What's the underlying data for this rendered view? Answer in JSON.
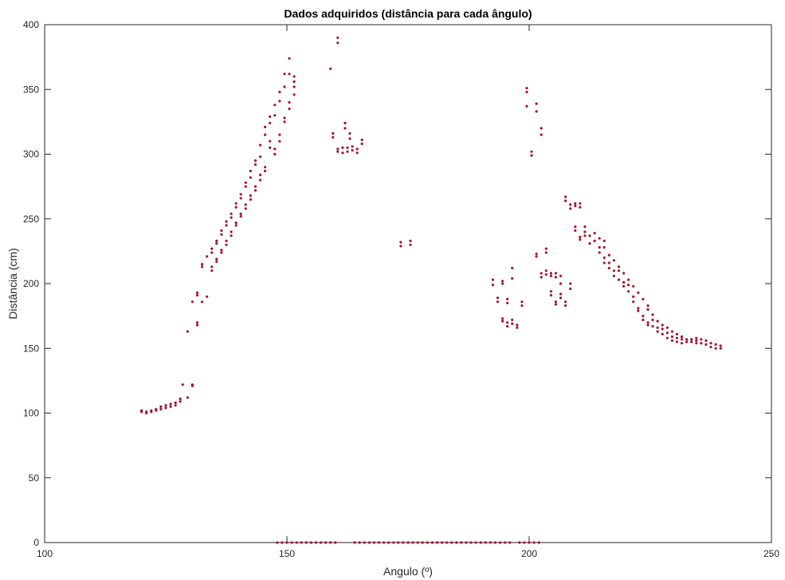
{
  "chart_data": {
    "type": "scatter",
    "title": "Dados adquiridos (distância para cada ângulo)",
    "xlabel": "Angulo (º)",
    "ylabel": "Distância (cm)",
    "xlim": [
      100,
      250
    ],
    "ylim": [
      0,
      400
    ],
    "xticks": [
      "100",
      "150",
      "200",
      "250"
    ],
    "yticks": [
      "0",
      "50",
      "100",
      "150",
      "200",
      "250",
      "300",
      "350",
      "400"
    ],
    "grid": false,
    "marker_color": "#A2142F",
    "points": [
      [
        120,
        101
      ],
      [
        120,
        102
      ],
      [
        121,
        100
      ],
      [
        121,
        101
      ],
      [
        122,
        101
      ],
      [
        122,
        102
      ],
      [
        123,
        102
      ],
      [
        123,
        103
      ],
      [
        124,
        103
      ],
      [
        124,
        105
      ],
      [
        125,
        104
      ],
      [
        125,
        106
      ],
      [
        126,
        105
      ],
      [
        126,
        107
      ],
      [
        127,
        106
      ],
      [
        127,
        108
      ],
      [
        128,
        109
      ],
      [
        128,
        111
      ],
      [
        128.5,
        122
      ],
      [
        129.5,
        112
      ],
      [
        129.5,
        163
      ],
      [
        130.5,
        121
      ],
      [
        130.5,
        122
      ],
      [
        130.5,
        186
      ],
      [
        131.5,
        168
      ],
      [
        131.5,
        170
      ],
      [
        131.5,
        191
      ],
      [
        131.5,
        193
      ],
      [
        132.5,
        186
      ],
      [
        132.5,
        213
      ],
      [
        132.5,
        215
      ],
      [
        133.5,
        190
      ],
      [
        133.5,
        221
      ],
      [
        134.5,
        210
      ],
      [
        134.5,
        213
      ],
      [
        134.5,
        224
      ],
      [
        134.5,
        227
      ],
      [
        135.5,
        217
      ],
      [
        135.5,
        219
      ],
      [
        135.5,
        231
      ],
      [
        135.5,
        233
      ],
      [
        136.5,
        224
      ],
      [
        136.5,
        226
      ],
      [
        136.5,
        238
      ],
      [
        136.5,
        241
      ],
      [
        137.5,
        230
      ],
      [
        137.5,
        233
      ],
      [
        137.5,
        245
      ],
      [
        137.5,
        248
      ],
      [
        138.5,
        237
      ],
      [
        138.5,
        240
      ],
      [
        138.5,
        251
      ],
      [
        138.5,
        254
      ],
      [
        139.5,
        245
      ],
      [
        139.5,
        247
      ],
      [
        139.5,
        259
      ],
      [
        139.5,
        262
      ],
      [
        140.5,
        252
      ],
      [
        140.5,
        254
      ],
      [
        140.5,
        266
      ],
      [
        140.5,
        269
      ],
      [
        141.5,
        258
      ],
      [
        141.5,
        261
      ],
      [
        141.5,
        275
      ],
      [
        141.5,
        278
      ],
      [
        142.5,
        265
      ],
      [
        142.5,
        268
      ],
      [
        142.5,
        282
      ],
      [
        142.5,
        287
      ],
      [
        143.5,
        272
      ],
      [
        143.5,
        275
      ],
      [
        143.5,
        292
      ],
      [
        143.5,
        295
      ],
      [
        144.5,
        280
      ],
      [
        144.5,
        284
      ],
      [
        144.5,
        298
      ],
      [
        144.5,
        307
      ],
      [
        145.5,
        287
      ],
      [
        145.5,
        290
      ],
      [
        145.5,
        315
      ],
      [
        145.5,
        321
      ],
      [
        146.5,
        305
      ],
      [
        146.5,
        310
      ],
      [
        146.5,
        324
      ],
      [
        146.5,
        329
      ],
      [
        147.5,
        300
      ],
      [
        147.5,
        304
      ],
      [
        147.5,
        330
      ],
      [
        147.5,
        338
      ],
      [
        148.5,
        310
      ],
      [
        148.5,
        315
      ],
      [
        148.5,
        341
      ],
      [
        148.5,
        348
      ],
      [
        149.5,
        325
      ],
      [
        149.5,
        328
      ],
      [
        149.5,
        352
      ],
      [
        149.5,
        362
      ],
      [
        150.5,
        335
      ],
      [
        150.5,
        340
      ],
      [
        150.5,
        362
      ],
      [
        150.5,
        374
      ],
      [
        151.5,
        346
      ],
      [
        151.5,
        352
      ],
      [
        151.5,
        356
      ],
      [
        151.5,
        360
      ],
      [
        159,
        366
      ],
      [
        160.5,
        386
      ],
      [
        160.5,
        390
      ],
      [
        159.5,
        313
      ],
      [
        159.5,
        316
      ],
      [
        160.5,
        302
      ],
      [
        160.5,
        304
      ],
      [
        161.5,
        301
      ],
      [
        161.5,
        305
      ],
      [
        162,
        320
      ],
      [
        162,
        324
      ],
      [
        162.5,
        302
      ],
      [
        162.5,
        305
      ],
      [
        163,
        312
      ],
      [
        163,
        316
      ],
      [
        163.5,
        303
      ],
      [
        163.5,
        306
      ],
      [
        164.5,
        301
      ],
      [
        164.5,
        304
      ],
      [
        165.5,
        308
      ],
      [
        165.5,
        311
      ],
      [
        173.5,
        229
      ],
      [
        173.5,
        232
      ],
      [
        175.5,
        230
      ],
      [
        175.5,
        233
      ],
      [
        192.5,
        199
      ],
      [
        192.5,
        203
      ],
      [
        193.5,
        186
      ],
      [
        193.5,
        189
      ],
      [
        194.5,
        171
      ],
      [
        194.5,
        173
      ],
      [
        194.5,
        200
      ],
      [
        194.5,
        202
      ],
      [
        195.5,
        167
      ],
      [
        195.5,
        170
      ],
      [
        195.5,
        185
      ],
      [
        195.5,
        188
      ],
      [
        196.5,
        169
      ],
      [
        196.5,
        172
      ],
      [
        196.5,
        204
      ],
      [
        196.5,
        212
      ],
      [
        197.5,
        166
      ],
      [
        197.5,
        168
      ],
      [
        198.5,
        183
      ],
      [
        198.5,
        186
      ],
      [
        199.5,
        337
      ],
      [
        199.5,
        348
      ],
      [
        199.5,
        351
      ],
      [
        200.5,
        299
      ],
      [
        200.5,
        302
      ],
      [
        201.5,
        221
      ],
      [
        201.5,
        223
      ],
      [
        201.5,
        333
      ],
      [
        201.5,
        339
      ],
      [
        202.5,
        205
      ],
      [
        202.5,
        208
      ],
      [
        202.5,
        315
      ],
      [
        202.5,
        320
      ],
      [
        203.5,
        207
      ],
      [
        203.5,
        210
      ],
      [
        203.5,
        224
      ],
      [
        203.5,
        227
      ],
      [
        204.5,
        191
      ],
      [
        204.5,
        194
      ],
      [
        204.5,
        206
      ],
      [
        204.5,
        208
      ],
      [
        205.5,
        184
      ],
      [
        205.5,
        186
      ],
      [
        205.5,
        205
      ],
      [
        205.5,
        208
      ],
      [
        206.5,
        189
      ],
      [
        206.5,
        192
      ],
      [
        206.5,
        200
      ],
      [
        206.5,
        206
      ],
      [
        207.5,
        183
      ],
      [
        207.5,
        186
      ],
      [
        207.5,
        264
      ],
      [
        207.5,
        267
      ],
      [
        208.5,
        196
      ],
      [
        208.5,
        200
      ],
      [
        208.5,
        258
      ],
      [
        208.5,
        261
      ],
      [
        209.5,
        241
      ],
      [
        209.5,
        244
      ],
      [
        209.5,
        260
      ],
      [
        209.5,
        262
      ],
      [
        210.5,
        234
      ],
      [
        210.5,
        236
      ],
      [
        210.5,
        259
      ],
      [
        210.5,
        262
      ],
      [
        211.5,
        237
      ],
      [
        211.5,
        240
      ],
      [
        211.5,
        244
      ],
      [
        212.5,
        231
      ],
      [
        212.5,
        237
      ],
      [
        213.5,
        233
      ],
      [
        213.5,
        239
      ],
      [
        214.5,
        224
      ],
      [
        214.5,
        228
      ],
      [
        214.5,
        235
      ],
      [
        215.5,
        216
      ],
      [
        215.5,
        220
      ],
      [
        215.5,
        228
      ],
      [
        215.5,
        233
      ],
      [
        216.5,
        212
      ],
      [
        216.5,
        216
      ],
      [
        216.5,
        222
      ],
      [
        217.5,
        206
      ],
      [
        217.5,
        210
      ],
      [
        217.5,
        218
      ],
      [
        218.5,
        203
      ],
      [
        218.5,
        210
      ],
      [
        218.5,
        213
      ],
      [
        219.5,
        198
      ],
      [
        219.5,
        201
      ],
      [
        219.5,
        208
      ],
      [
        220.5,
        194
      ],
      [
        220.5,
        199
      ],
      [
        220.5,
        203
      ],
      [
        221.5,
        186
      ],
      [
        221.5,
        190
      ],
      [
        221.5,
        198
      ],
      [
        222.5,
        179
      ],
      [
        222.5,
        181
      ],
      [
        222.5,
        193
      ],
      [
        223.5,
        172
      ],
      [
        223.5,
        175
      ],
      [
        223.5,
        188
      ],
      [
        224.5,
        168
      ],
      [
        224.5,
        170
      ],
      [
        224.5,
        180
      ],
      [
        224.5,
        183
      ],
      [
        225.5,
        167
      ],
      [
        225.5,
        172
      ],
      [
        225.5,
        176
      ],
      [
        226.5,
        163
      ],
      [
        226.5,
        166
      ],
      [
        226.5,
        171
      ],
      [
        227.5,
        161
      ],
      [
        227.5,
        165
      ],
      [
        227.5,
        168
      ],
      [
        228.5,
        158
      ],
      [
        228.5,
        162
      ],
      [
        228.5,
        166
      ],
      [
        229.5,
        156
      ],
      [
        229.5,
        159
      ],
      [
        229.5,
        163
      ],
      [
        230.5,
        155
      ],
      [
        230.5,
        158
      ],
      [
        230.5,
        161
      ],
      [
        231.5,
        154
      ],
      [
        231.5,
        157
      ],
      [
        231.5,
        159
      ],
      [
        232.5,
        155
      ],
      [
        232.5,
        157
      ],
      [
        233.5,
        155
      ],
      [
        233.5,
        157
      ],
      [
        234.5,
        154
      ],
      [
        234.5,
        156
      ],
      [
        234.5,
        158
      ],
      [
        235.5,
        154
      ],
      [
        235.5,
        157
      ],
      [
        236.5,
        153
      ],
      [
        236.5,
        156
      ],
      [
        237.5,
        151
      ],
      [
        237.5,
        154
      ],
      [
        238.5,
        150
      ],
      [
        238.5,
        153
      ],
      [
        239.5,
        150
      ],
      [
        239.5,
        152
      ],
      [
        148,
        0
      ],
      [
        149,
        0
      ],
      [
        150,
        0
      ],
      [
        151,
        0
      ],
      [
        152,
        0
      ],
      [
        153,
        0
      ],
      [
        154,
        0
      ],
      [
        155,
        0
      ],
      [
        156,
        0
      ],
      [
        157,
        0
      ],
      [
        158,
        0
      ],
      [
        159,
        0
      ],
      [
        160,
        0
      ],
      [
        164,
        0
      ],
      [
        165,
        0
      ],
      [
        166,
        0
      ],
      [
        167,
        0
      ],
      [
        168,
        0
      ],
      [
        169,
        0
      ],
      [
        170,
        0
      ],
      [
        171,
        0
      ],
      [
        172,
        0
      ],
      [
        173,
        0
      ],
      [
        174,
        0
      ],
      [
        175,
        0
      ],
      [
        176,
        0
      ],
      [
        177,
        0
      ],
      [
        178,
        0
      ],
      [
        179,
        0
      ],
      [
        180,
        0
      ],
      [
        181,
        0
      ],
      [
        182,
        0
      ],
      [
        183,
        0
      ],
      [
        184,
        0
      ],
      [
        185,
        0
      ],
      [
        186,
        0
      ],
      [
        187,
        0
      ],
      [
        188,
        0
      ],
      [
        189,
        0
      ],
      [
        190,
        0
      ],
      [
        191,
        0
      ],
      [
        192,
        0
      ],
      [
        193,
        0
      ],
      [
        194,
        0
      ],
      [
        195,
        0
      ],
      [
        196,
        0
      ],
      [
        198,
        0
      ],
      [
        199,
        0
      ],
      [
        200,
        0
      ],
      [
        201,
        0
      ],
      [
        202,
        0
      ]
    ]
  }
}
